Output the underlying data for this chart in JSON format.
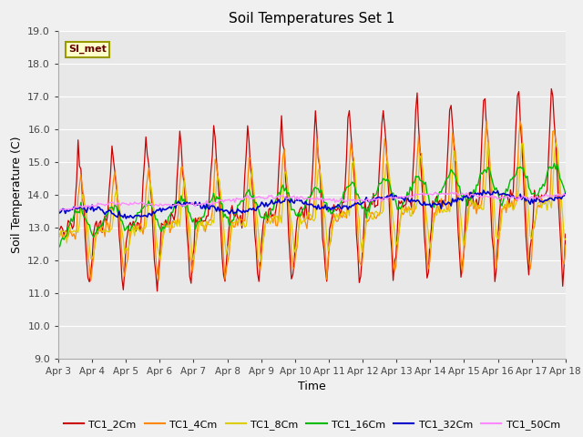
{
  "title": "Soil Temperatures Set 1",
  "xlabel": "Time",
  "ylabel": "Soil Temperature (C)",
  "ylim": [
    9.0,
    19.0
  ],
  "yticks": [
    9.0,
    10.0,
    11.0,
    12.0,
    13.0,
    14.0,
    15.0,
    16.0,
    17.0,
    18.0,
    19.0
  ],
  "xtick_labels": [
    "Apr 3",
    "Apr 4",
    "Apr 5",
    "Apr 6",
    "Apr 7",
    "Apr 8",
    "Apr 9",
    "Apr 10",
    "Apr 11",
    "Apr 12",
    "Apr 13",
    "Apr 14",
    "Apr 15",
    "Apr 16",
    "Apr 17",
    "Apr 18"
  ],
  "series_colors": {
    "TC1_2Cm": "#cc0000",
    "TC1_4Cm": "#ff8800",
    "TC1_8Cm": "#ddcc00",
    "TC1_16Cm": "#00bb00",
    "TC1_32Cm": "#0000cc",
    "TC1_50Cm": "#ff88ff"
  },
  "fig_bg": "#f0f0f0",
  "plot_bg": "#e8e8e8",
  "grid_color": "#ffffff",
  "annotation_text": "SI_met",
  "annotation_fg": "#660000",
  "annotation_bg": "#ffffcc",
  "annotation_border": "#999900"
}
